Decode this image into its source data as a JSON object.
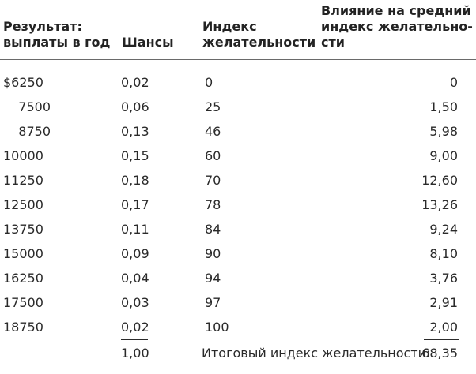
{
  "headers": {
    "result": [
      "Результат:",
      "выплаты в год"
    ],
    "odds": [
      "Шансы"
    ],
    "index": [
      "Индекс",
      "желательности"
    ],
    "effect": [
      "Влияние на средний",
      "индекс желательно-",
      "сти"
    ]
  },
  "rows": [
    {
      "pay": "$6250",
      "odds": "0,02",
      "index": "0",
      "effect": "0"
    },
    {
      "pay": "7500",
      "odds": "0,06",
      "index": "25",
      "effect": "1,50"
    },
    {
      "pay": "8750",
      "odds": "0,13",
      "index": "46",
      "effect": "5,98"
    },
    {
      "pay": "10000",
      "odds": "0,15",
      "index": "60",
      "effect": "9,00"
    },
    {
      "pay": "11250",
      "odds": "0,18",
      "index": "70",
      "effect": "12,60"
    },
    {
      "pay": "12500",
      "odds": "0,17",
      "index": "78",
      "effect": "13,26"
    },
    {
      "pay": "13750",
      "odds": "0,11",
      "index": "84",
      "effect": "9,24"
    },
    {
      "pay": "15000",
      "odds": "0,09",
      "index": "90",
      "effect": "8,10"
    },
    {
      "pay": "16250",
      "odds": "0,04",
      "index": "94",
      "effect": "3,76"
    },
    {
      "pay": "17500",
      "odds": "0,03",
      "index": "97",
      "effect": "2,91"
    },
    {
      "pay": "18750",
      "odds": "0,02",
      "index": "100",
      "effect": "2,00"
    }
  ],
  "totals": {
    "odds": "1,00",
    "label": "Итоговый индекс желательности:",
    "effect": "68,35"
  }
}
